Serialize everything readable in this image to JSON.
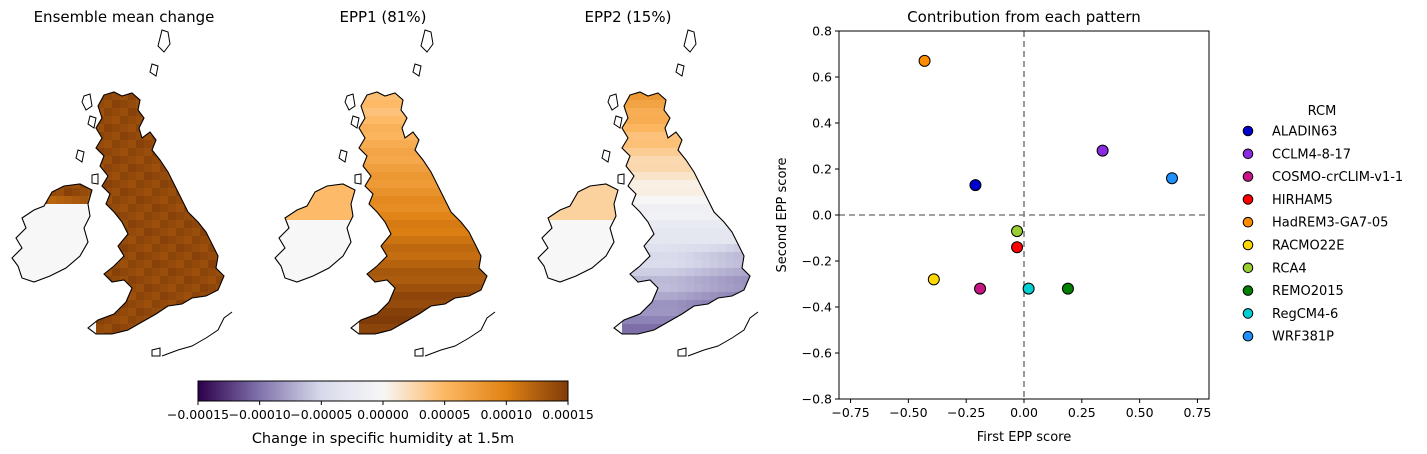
{
  "maps": {
    "panels": [
      {
        "title": "Ensemble mean change"
      },
      {
        "title": "EPP1 (81%)"
      },
      {
        "title": "EPP2 (15%)"
      }
    ],
    "colorbar": {
      "label": "Change in specific humidity at 1.5m",
      "min": -0.00015,
      "max": 0.00015,
      "tick_labels": [
        "−0.00015",
        "−0.00010",
        "−0.00005",
        "0.00000",
        "0.00005",
        "0.00010",
        "0.00015"
      ],
      "tick_values": [
        -0.00015,
        -0.0001,
        -5e-05,
        0,
        5e-05,
        0.0001,
        0.00015
      ],
      "colormap_stops": [
        "#2d004b",
        "#8073ac",
        "#d8daeb",
        "#f7f7f7",
        "#fdb863",
        "#e08214",
        "#7f3b08"
      ]
    }
  },
  "chart_data": {
    "type": "scatter",
    "title": "Contribution from each pattern",
    "xlabel": "First EPP score",
    "ylabel": "Second EPP score",
    "xlim": [
      -0.8,
      0.8
    ],
    "ylim": [
      -0.8,
      0.8
    ],
    "x_ticks": [
      -0.75,
      -0.5,
      -0.25,
      0.0,
      0.25,
      0.5,
      0.75
    ],
    "x_tick_labels": [
      "−0.75",
      "−0.50",
      "−0.25",
      "0.00",
      "0.25",
      "0.50",
      "0.75"
    ],
    "y_ticks": [
      -0.8,
      -0.6,
      -0.4,
      -0.2,
      0.0,
      0.2,
      0.4,
      0.6,
      0.8
    ],
    "y_tick_labels": [
      "−0.8",
      "−0.6",
      "−0.4",
      "−0.2",
      "0.0",
      "0.2",
      "0.4",
      "0.6",
      "0.8"
    ],
    "reference_lines": {
      "x": 0,
      "y": 0,
      "style": "dashed",
      "color": "#808080"
    },
    "grid": false,
    "legend": {
      "title": "RCM",
      "placement": "outside-right"
    },
    "points": [
      {
        "name": "ALADIN63",
        "x": -0.21,
        "y": 0.13,
        "color": "#0000cd"
      },
      {
        "name": "CCLM4-8-17",
        "x": 0.34,
        "y": 0.28,
        "color": "#8a2be2"
      },
      {
        "name": "COSMO-crCLIM-v1-1",
        "x": -0.19,
        "y": -0.32,
        "color": "#c71585"
      },
      {
        "name": "HIRHAM5",
        "x": -0.03,
        "y": -0.14,
        "color": "#ff0000"
      },
      {
        "name": "HadREM3-GA7-05",
        "x": -0.43,
        "y": 0.67,
        "color": "#ff8c00"
      },
      {
        "name": "RACMO22E",
        "x": -0.39,
        "y": -0.28,
        "color": "#ffd700"
      },
      {
        "name": "RCA4",
        "x": -0.03,
        "y": -0.07,
        "color": "#9acd32"
      },
      {
        "name": "REMO2015",
        "x": 0.19,
        "y": -0.32,
        "color": "#008000"
      },
      {
        "name": "RegCM4-6",
        "x": 0.02,
        "y": -0.32,
        "color": "#00ced1"
      },
      {
        "name": "WRF381P",
        "x": 0.64,
        "y": 0.16,
        "color": "#1e90ff"
      }
    ]
  }
}
